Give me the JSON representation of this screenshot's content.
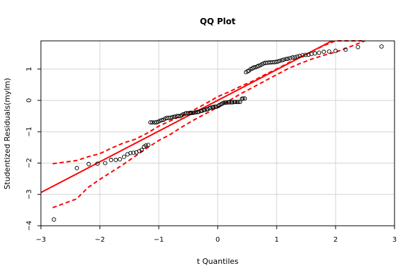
{
  "chart_data": {
    "type": "scatter",
    "title": "QQ Plot",
    "xlabel": "t Quantiles",
    "ylabel": "Studentized Residuals(mylm)",
    "xlim": [
      -3,
      3
    ],
    "ylim": [
      -4,
      1.9
    ],
    "x_ticks": [
      "-3",
      "-2",
      "-1",
      "0",
      "1",
      "2",
      "3"
    ],
    "y_ticks": [
      "-4",
      "-3",
      "-2",
      "-1",
      "0",
      "1"
    ],
    "grid": true,
    "colors": {
      "points": "#000000",
      "reference_line": "#ff0000",
      "envelope": "#ff0000",
      "grid": "#d3d3d3"
    },
    "reference_line": {
      "intercept": 0.0,
      "slope": 0.98
    },
    "envelope": {
      "x": [
        -2.8,
        -2.4,
        -2.2,
        -2.0,
        -1.8,
        -1.6,
        -1.4,
        -1.2,
        -1.0,
        -0.8,
        -0.6,
        -0.4,
        -0.2,
        0.0,
        0.2,
        0.4,
        0.6,
        0.8,
        1.0,
        1.2,
        1.4,
        1.6,
        1.8,
        2.0,
        2.2,
        2.5
      ],
      "upper": [
        -2.02,
        -1.92,
        -1.8,
        -1.7,
        -1.52,
        -1.36,
        -1.24,
        -1.05,
        -0.82,
        -0.65,
        -0.48,
        -0.3,
        -0.1,
        0.12,
        0.28,
        0.46,
        0.62,
        0.82,
        1.0,
        1.2,
        1.38,
        1.56,
        1.75,
        1.9,
        1.97,
        2.02
      ],
      "lower": [
        -3.42,
        -3.15,
        -2.78,
        -2.52,
        -2.28,
        -2.04,
        -1.78,
        -1.52,
        -1.28,
        -1.08,
        -0.84,
        -0.62,
        -0.42,
        -0.22,
        0.0,
        0.22,
        0.42,
        0.62,
        0.82,
        1.02,
        1.18,
        1.32,
        1.44,
        1.54,
        1.68,
        1.95
      ]
    },
    "points": {
      "x": [
        -2.78,
        -2.39,
        -2.19,
        -2.04,
        -1.91,
        -1.81,
        -1.73,
        -1.66,
        -1.59,
        -1.53,
        -1.48,
        -1.43,
        -1.38,
        -1.33,
        -1.29,
        -1.25,
        -1.22,
        -1.18,
        -1.14,
        -1.11,
        -1.07,
        -1.04,
        -1.01,
        -0.98,
        -0.95,
        -0.92,
        -0.89,
        -0.86,
        -0.83,
        -0.8,
        -0.77,
        -0.74,
        -0.72,
        -0.69,
        -0.66,
        -0.63,
        -0.61,
        -0.58,
        -0.55,
        -0.53,
        -0.5,
        -0.47,
        -0.45,
        -0.42,
        -0.4,
        -0.37,
        -0.34,
        -0.32,
        -0.29,
        -0.27,
        -0.24,
        -0.22,
        -0.19,
        -0.17,
        -0.14,
        -0.12,
        -0.09,
        -0.07,
        -0.04,
        -0.02,
        0.01,
        0.03,
        0.06,
        0.08,
        0.1,
        0.13,
        0.15,
        0.18,
        0.2,
        0.23,
        0.25,
        0.28,
        0.3,
        0.33,
        0.35,
        0.38,
        0.41,
        0.43,
        0.46,
        0.48,
        0.51,
        0.53,
        0.56,
        0.59,
        0.61,
        0.64,
        0.67,
        0.69,
        0.72,
        0.75,
        0.78,
        0.81,
        0.84,
        0.87,
        0.9,
        0.93,
        0.96,
        0.99,
        1.02,
        1.05,
        1.09,
        1.12,
        1.16,
        1.19,
        1.23,
        1.27,
        1.31,
        1.35,
        1.39,
        1.44,
        1.49,
        1.54,
        1.59,
        1.65,
        1.72,
        1.8,
        1.89,
        2.0,
        2.17,
        2.38,
        2.78
      ],
      "y": [
        -3.8,
        -2.16,
        -2.03,
        -2.02,
        -2.0,
        -1.9,
        -1.9,
        -1.88,
        -1.8,
        -1.72,
        -1.68,
        -1.67,
        -1.66,
        -1.62,
        -1.58,
        -1.48,
        -1.44,
        -1.42,
        -0.7,
        -0.7,
        -0.7,
        -0.7,
        -0.68,
        -0.65,
        -0.63,
        -0.62,
        -0.58,
        -0.56,
        -0.56,
        -0.55,
        -0.54,
        -0.52,
        -0.52,
        -0.5,
        -0.5,
        -0.5,
        -0.47,
        -0.44,
        -0.42,
        -0.41,
        -0.41,
        -0.4,
        -0.4,
        -0.4,
        -0.39,
        -0.38,
        -0.37,
        -0.36,
        -0.34,
        -0.33,
        -0.31,
        -0.3,
        -0.29,
        -0.28,
        -0.25,
        -0.23,
        -0.22,
        -0.21,
        -0.2,
        -0.2,
        -0.18,
        -0.15,
        -0.12,
        -0.1,
        -0.08,
        -0.07,
        -0.07,
        -0.06,
        -0.06,
        -0.06,
        -0.06,
        -0.05,
        -0.05,
        -0.05,
        -0.05,
        -0.05,
        0.05,
        0.06,
        0.06,
        0.9,
        0.93,
        0.95,
        1.0,
        1.02,
        1.05,
        1.06,
        1.08,
        1.1,
        1.12,
        1.15,
        1.18,
        1.2,
        1.2,
        1.21,
        1.21,
        1.22,
        1.22,
        1.23,
        1.24,
        1.26,
        1.28,
        1.3,
        1.32,
        1.33,
        1.35,
        1.37,
        1.38,
        1.4,
        1.42,
        1.44,
        1.45,
        1.46,
        1.48,
        1.5,
        1.52,
        1.55,
        1.56,
        1.58,
        1.62,
        1.7,
        1.72
      ]
    }
  }
}
